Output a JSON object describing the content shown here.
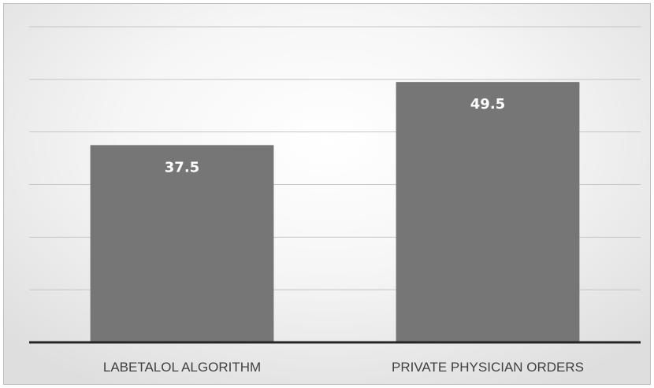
{
  "chart_data": {
    "type": "bar",
    "categories": [
      "LABETALOL ALGORITHM",
      "PRIVATE PHYSICIAN ORDERS"
    ],
    "values": [
      37.5,
      49.5
    ],
    "data_labels": [
      "37.5",
      "49.5"
    ],
    "ylim": [
      0,
      60
    ],
    "y_gridline_step": 10,
    "grid": true,
    "y_tick_labels_visible": false,
    "legend": "none",
    "colors": {
      "bar": "#767676",
      "data_label": "#ffffff",
      "axis": "#262626",
      "grid": "#c4c4c4"
    }
  }
}
